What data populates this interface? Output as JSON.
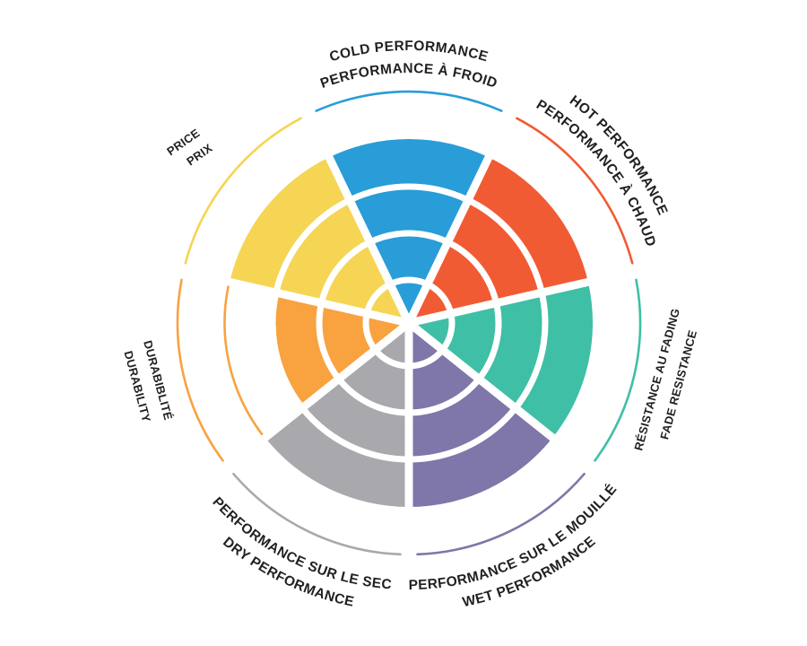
{
  "chart": {
    "background": "#FFFFFF",
    "label_color": "#231F20"
  },
  "chart_data": {
    "type": "polar-wedge-rating",
    "rings": 4,
    "max_value": 4,
    "legend_position": "radial-around-wheel",
    "grid": "concentric-ring-separators",
    "categories": [
      {
        "id": "cold-performance",
        "label_en": "COLD PERFORMANCE",
        "label_fr": "PERFORMANCE À FROID",
        "value": 4,
        "color": "#299DD7"
      },
      {
        "id": "hot-performance",
        "label_en": "HOT PERFORMANCE",
        "label_fr": "PERFORMANCE À CHAUD",
        "value": 4,
        "color": "#F15B33"
      },
      {
        "id": "fade-resistance",
        "label_en": "FADE RESISTANCE",
        "label_fr": "RÉSISTANCE AU FADING",
        "value": 4,
        "color": "#3FBFA6"
      },
      {
        "id": "wet-performance",
        "label_en": "WET PERFORMANCE",
        "label_fr": "PERFORMANCE SUR LE MOUILLÉ",
        "value": 4,
        "color": "#7F76A9"
      },
      {
        "id": "dry-performance",
        "label_en": "DRY PERFORMANCE",
        "label_fr": "PERFORMANCE SUR LE SEC",
        "value": 4,
        "color": "#A9A9AD"
      },
      {
        "id": "durability",
        "label_en": "DURABILITY",
        "label_fr": "DURABIBLITÉ",
        "value": 3,
        "color": "#F9A240"
      },
      {
        "id": "price",
        "label_en": "PRICE",
        "label_fr": "PRIX",
        "value": 4,
        "color": "#F5D553"
      }
    ]
  }
}
